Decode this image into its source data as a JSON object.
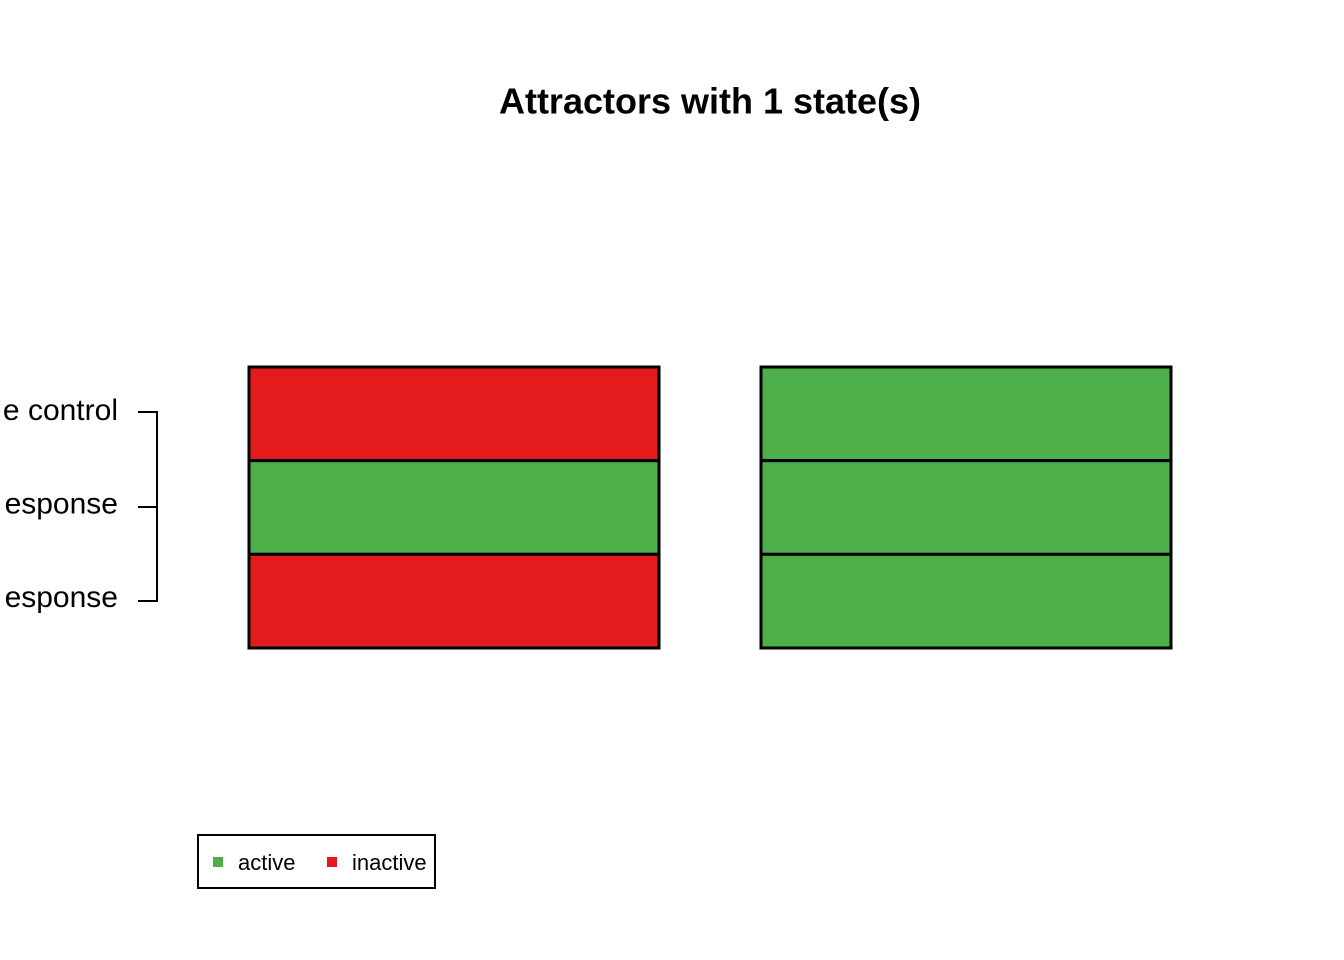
{
  "title": "Attractors with 1 state(s)",
  "genes": [
    "e control",
    "esponse",
    "esponse"
  ],
  "attractors": [
    {
      "states": [
        "inactive",
        "active",
        "inactive"
      ]
    },
    {
      "states": [
        "active",
        "active",
        "active"
      ]
    }
  ],
  "legend": [
    {
      "label": "active",
      "color": "#4DAF4A"
    },
    {
      "label": "inactive",
      "color": "#E41A1C"
    }
  ]
}
